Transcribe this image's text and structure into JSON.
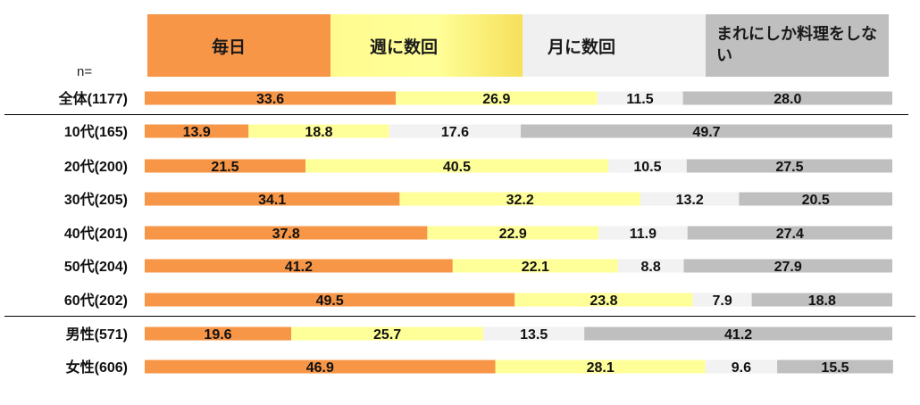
{
  "n_label": "n=",
  "colors": {
    "daily": "#f79646",
    "weekly": "#ffff99",
    "monthly": "#f2f2f2",
    "rarely": "#bfbfbf"
  },
  "chart_data": {
    "type": "bar",
    "orientation": "horizontal",
    "stacked": true,
    "unit": "%",
    "legend_position": "top",
    "categories": [
      "全体(1177)",
      "10代(165)",
      "20代(200)",
      "30代(205)",
      "40代(201)",
      "50代(204)",
      "60代(202)",
      "男性(571)",
      "女性(606)"
    ],
    "series": [
      {
        "name": "毎日",
        "values": [
          33.6,
          13.9,
          21.5,
          34.1,
          37.8,
          41.2,
          49.5,
          19.6,
          46.9
        ]
      },
      {
        "name": "週に数回",
        "values": [
          26.9,
          18.8,
          40.5,
          32.2,
          22.9,
          22.1,
          23.8,
          25.7,
          28.1
        ]
      },
      {
        "name": "月に数回",
        "values": [
          11.5,
          17.6,
          10.5,
          13.2,
          11.9,
          8.8,
          7.9,
          13.5,
          9.6
        ]
      },
      {
        "name": "まれにしか料理をしない",
        "values": [
          28.0,
          49.7,
          27.5,
          20.5,
          27.4,
          27.9,
          18.8,
          41.2,
          15.5
        ]
      }
    ],
    "xlim": [
      0,
      100
    ]
  }
}
